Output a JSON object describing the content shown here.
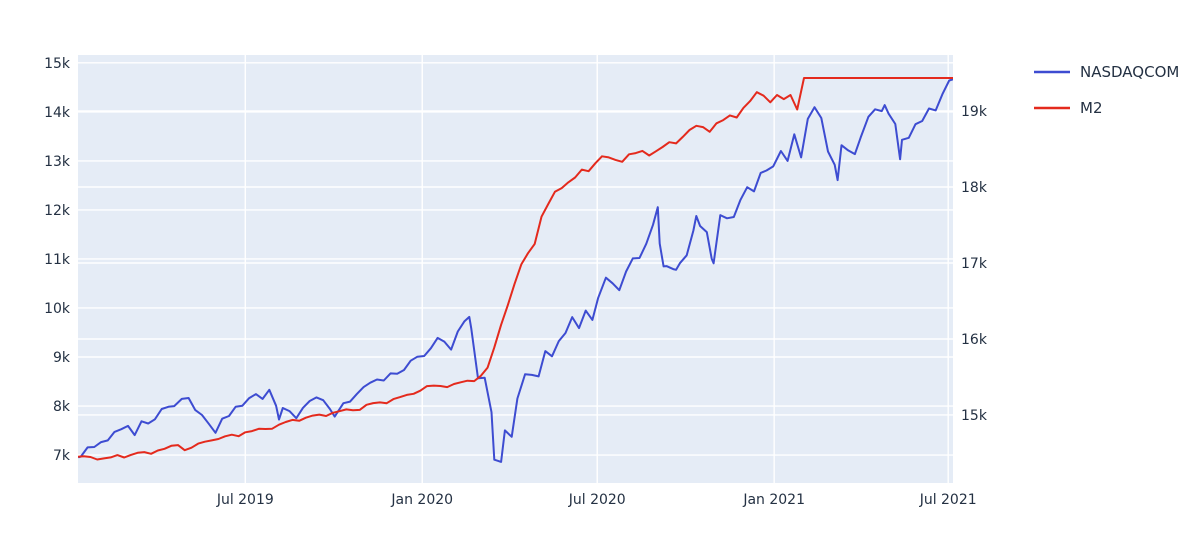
{
  "chart_data": {
    "type": "line",
    "title": "",
    "legend_position": "top-right",
    "grid": true,
    "colors": {
      "nasdaq": "#3d4cd1",
      "m2": "#e42a1d",
      "plot_bg": "#e5ecf6",
      "grid": "#ffffff",
      "text": "#243143"
    },
    "x_range": [
      "2019-01-08",
      "2021-07-06"
    ],
    "x_tick_dates": [
      "2019-07-01",
      "2020-01-01",
      "2020-07-01",
      "2021-01-01",
      "2021-07-01"
    ],
    "x_tick_labels": [
      "Jul 2019",
      "Jan 2020",
      "Jul 2020",
      "Jan 2021",
      "Jul 2021"
    ],
    "y_left": {
      "range": [
        6430,
        15160
      ],
      "ticks": [
        7000,
        8000,
        9000,
        10000,
        11000,
        12000,
        13000,
        14000,
        15000
      ],
      "tick_labels": [
        "7k",
        "8k",
        "9k",
        "10k",
        "11k",
        "12k",
        "13k",
        "14k",
        "15k"
      ]
    },
    "y_right": {
      "range": [
        14105,
        19737
      ],
      "ticks": [
        15000,
        16000,
        17000,
        18000,
        19000
      ],
      "tick_labels": [
        "15k",
        "16k",
        "17k",
        "18k",
        "19k"
      ]
    },
    "series": [
      {
        "name": "NASDAQCOM",
        "axis": "left",
        "color_key": "nasdaq",
        "points": [
          [
            "2019-01-09",
            6957
          ],
          [
            "2019-01-11",
            6971
          ],
          [
            "2019-01-18",
            7157
          ],
          [
            "2019-01-25",
            7164
          ],
          [
            "2019-02-01",
            7264
          ],
          [
            "2019-02-08",
            7298
          ],
          [
            "2019-02-15",
            7472
          ],
          [
            "2019-02-22",
            7527
          ],
          [
            "2019-03-01",
            7595
          ],
          [
            "2019-03-08",
            7408
          ],
          [
            "2019-03-15",
            7689
          ],
          [
            "2019-03-22",
            7643
          ],
          [
            "2019-03-29",
            7729
          ],
          [
            "2019-04-05",
            7939
          ],
          [
            "2019-04-12",
            7984
          ],
          [
            "2019-04-18",
            7998
          ],
          [
            "2019-04-26",
            8146
          ],
          [
            "2019-05-03",
            8164
          ],
          [
            "2019-05-10",
            7917
          ],
          [
            "2019-05-17",
            7816
          ],
          [
            "2019-05-24",
            7637
          ],
          [
            "2019-05-31",
            7453
          ],
          [
            "2019-06-07",
            7742
          ],
          [
            "2019-06-14",
            7797
          ],
          [
            "2019-06-21",
            7987
          ],
          [
            "2019-06-28",
            8006
          ],
          [
            "2019-07-05",
            8162
          ],
          [
            "2019-07-12",
            8244
          ],
          [
            "2019-07-19",
            8146
          ],
          [
            "2019-07-26",
            8330
          ],
          [
            "2019-08-02",
            8004
          ],
          [
            "2019-08-05",
            7726
          ],
          [
            "2019-08-09",
            7959
          ],
          [
            "2019-08-16",
            7896
          ],
          [
            "2019-08-23",
            7751
          ],
          [
            "2019-08-30",
            7963
          ],
          [
            "2019-09-06",
            8103
          ],
          [
            "2019-09-13",
            8177
          ],
          [
            "2019-09-20",
            8118
          ],
          [
            "2019-09-27",
            7940
          ],
          [
            "2019-10-02",
            7785
          ],
          [
            "2019-10-11",
            8057
          ],
          [
            "2019-10-18",
            8090
          ],
          [
            "2019-10-25",
            8243
          ],
          [
            "2019-11-01",
            8386
          ],
          [
            "2019-11-08",
            8475
          ],
          [
            "2019-11-15",
            8541
          ],
          [
            "2019-11-22",
            8520
          ],
          [
            "2019-11-29",
            8665
          ],
          [
            "2019-12-06",
            8657
          ],
          [
            "2019-12-13",
            8735
          ],
          [
            "2019-12-20",
            8925
          ],
          [
            "2019-12-27",
            9007
          ],
          [
            "2020-01-03",
            9021
          ],
          [
            "2020-01-10",
            9179
          ],
          [
            "2020-01-17",
            9389
          ],
          [
            "2020-01-24",
            9315
          ],
          [
            "2020-01-31",
            9151
          ],
          [
            "2020-02-07",
            9521
          ],
          [
            "2020-02-14",
            9731
          ],
          [
            "2020-02-19",
            9817
          ],
          [
            "2020-02-21",
            9577
          ],
          [
            "2020-02-28",
            8567
          ],
          [
            "2020-03-06",
            8576
          ],
          [
            "2020-03-13",
            7875
          ],
          [
            "2020-03-16",
            6905
          ],
          [
            "2020-03-20",
            6880
          ],
          [
            "2020-03-23",
            6861
          ],
          [
            "2020-03-27",
            7502
          ],
          [
            "2020-04-03",
            7373
          ],
          [
            "2020-04-09",
            8154
          ],
          [
            "2020-04-17",
            8650
          ],
          [
            "2020-04-24",
            8635
          ],
          [
            "2020-05-01",
            8605
          ],
          [
            "2020-05-08",
            9121
          ],
          [
            "2020-05-15",
            9015
          ],
          [
            "2020-05-22",
            9325
          ],
          [
            "2020-05-29",
            9490
          ],
          [
            "2020-06-05",
            9814
          ],
          [
            "2020-06-12",
            9589
          ],
          [
            "2020-06-19",
            9946
          ],
          [
            "2020-06-26",
            9757
          ],
          [
            "2020-07-02",
            10208
          ],
          [
            "2020-07-10",
            10617
          ],
          [
            "2020-07-17",
            10503
          ],
          [
            "2020-07-24",
            10363
          ],
          [
            "2020-07-31",
            10745
          ],
          [
            "2020-08-07",
            11011
          ],
          [
            "2020-08-14",
            11019
          ],
          [
            "2020-08-21",
            11312
          ],
          [
            "2020-08-28",
            11696
          ],
          [
            "2020-09-02",
            12056
          ],
          [
            "2020-09-04",
            11313
          ],
          [
            "2020-09-08",
            10848
          ],
          [
            "2020-09-11",
            10854
          ],
          [
            "2020-09-18",
            10793
          ],
          [
            "2020-09-21",
            10779
          ],
          [
            "2020-09-25",
            10914
          ],
          [
            "2020-10-02",
            11075
          ],
          [
            "2020-10-09",
            11580
          ],
          [
            "2020-10-12",
            11876
          ],
          [
            "2020-10-16",
            11672
          ],
          [
            "2020-10-23",
            11548
          ],
          [
            "2020-10-28",
            11005
          ],
          [
            "2020-10-30",
            10912
          ],
          [
            "2020-11-06",
            11895
          ],
          [
            "2020-11-13",
            11829
          ],
          [
            "2020-11-20",
            11855
          ],
          [
            "2020-11-27",
            12206
          ],
          [
            "2020-12-04",
            12464
          ],
          [
            "2020-12-11",
            12378
          ],
          [
            "2020-12-18",
            12756
          ],
          [
            "2020-12-24",
            12805
          ],
          [
            "2020-12-31",
            12888
          ],
          [
            "2021-01-08",
            13202
          ],
          [
            "2021-01-15",
            12999
          ],
          [
            "2021-01-22",
            13543
          ],
          [
            "2021-01-29",
            13071
          ],
          [
            "2021-02-05",
            13856
          ],
          [
            "2021-02-12",
            14095
          ],
          [
            "2021-02-19",
            13874
          ],
          [
            "2021-02-26",
            13192
          ],
          [
            "2021-03-05",
            12920
          ],
          [
            "2021-03-08",
            12609
          ],
          [
            "2021-03-12",
            13320
          ],
          [
            "2021-03-19",
            13215
          ],
          [
            "2021-03-26",
            13139
          ],
          [
            "2021-04-01",
            13480
          ],
          [
            "2021-04-09",
            13900
          ],
          [
            "2021-04-16",
            14052
          ],
          [
            "2021-04-23",
            14016
          ],
          [
            "2021-04-26",
            14138
          ],
          [
            "2021-04-30",
            13963
          ],
          [
            "2021-05-07",
            13752
          ],
          [
            "2021-05-12",
            13032
          ],
          [
            "2021-05-14",
            13430
          ],
          [
            "2021-05-21",
            13471
          ],
          [
            "2021-05-28",
            13749
          ],
          [
            "2021-06-04",
            13814
          ],
          [
            "2021-06-11",
            14069
          ],
          [
            "2021-06-18",
            14030
          ],
          [
            "2021-06-25",
            14360
          ],
          [
            "2021-07-02",
            14639
          ],
          [
            "2021-07-06",
            14664
          ]
        ]
      },
      {
        "name": "M2",
        "axis": "right",
        "color_key": "m2",
        "points": [
          [
            "2019-01-08",
            14450
          ],
          [
            "2019-01-14",
            14458
          ],
          [
            "2019-01-21",
            14447
          ],
          [
            "2019-01-28",
            14414
          ],
          [
            "2019-02-04",
            14429
          ],
          [
            "2019-02-11",
            14442
          ],
          [
            "2019-02-18",
            14472
          ],
          [
            "2019-02-25",
            14441
          ],
          [
            "2019-03-04",
            14475
          ],
          [
            "2019-03-11",
            14502
          ],
          [
            "2019-03-18",
            14512
          ],
          [
            "2019-03-25",
            14489
          ],
          [
            "2019-04-01",
            14533
          ],
          [
            "2019-04-08",
            14555
          ],
          [
            "2019-04-15",
            14594
          ],
          [
            "2019-04-22",
            14604
          ],
          [
            "2019-04-29",
            14536
          ],
          [
            "2019-05-06",
            14569
          ],
          [
            "2019-05-13",
            14623
          ],
          [
            "2019-05-20",
            14648
          ],
          [
            "2019-05-27",
            14665
          ],
          [
            "2019-06-03",
            14684
          ],
          [
            "2019-06-10",
            14720
          ],
          [
            "2019-06-17",
            14741
          ],
          [
            "2019-06-24",
            14721
          ],
          [
            "2019-07-01",
            14772
          ],
          [
            "2019-07-08",
            14788
          ],
          [
            "2019-07-15",
            14818
          ],
          [
            "2019-07-22",
            14816
          ],
          [
            "2019-07-29",
            14819
          ],
          [
            "2019-08-05",
            14872
          ],
          [
            "2019-08-12",
            14908
          ],
          [
            "2019-08-19",
            14935
          ],
          [
            "2019-08-26",
            14923
          ],
          [
            "2019-09-02",
            14964
          ],
          [
            "2019-09-09",
            14992
          ],
          [
            "2019-09-16",
            15005
          ],
          [
            "2019-09-23",
            14987
          ],
          [
            "2019-09-30",
            15029
          ],
          [
            "2019-10-07",
            15050
          ],
          [
            "2019-10-14",
            15074
          ],
          [
            "2019-10-21",
            15063
          ],
          [
            "2019-10-28",
            15067
          ],
          [
            "2019-11-04",
            15134
          ],
          [
            "2019-11-11",
            15157
          ],
          [
            "2019-11-18",
            15166
          ],
          [
            "2019-11-25",
            15155
          ],
          [
            "2019-12-02",
            15209
          ],
          [
            "2019-12-09",
            15236
          ],
          [
            "2019-12-16",
            15264
          ],
          [
            "2019-12-23",
            15279
          ],
          [
            "2019-12-30",
            15319
          ],
          [
            "2020-01-06",
            15380
          ],
          [
            "2020-01-13",
            15387
          ],
          [
            "2020-01-20",
            15381
          ],
          [
            "2020-01-27",
            15367
          ],
          [
            "2020-02-03",
            15408
          ],
          [
            "2020-02-10",
            15430
          ],
          [
            "2020-02-17",
            15451
          ],
          [
            "2020-02-24",
            15446
          ],
          [
            "2020-03-02",
            15516
          ],
          [
            "2020-03-09",
            15624
          ],
          [
            "2020-03-16",
            15889
          ],
          [
            "2020-03-23",
            16187
          ],
          [
            "2020-03-30",
            16445
          ],
          [
            "2020-04-06",
            16722
          ],
          [
            "2020-04-13",
            16981
          ],
          [
            "2020-04-20",
            17129
          ],
          [
            "2020-04-27",
            17251
          ],
          [
            "2020-05-04",
            17609
          ],
          [
            "2020-05-11",
            17775
          ],
          [
            "2020-05-18",
            17937
          ],
          [
            "2020-05-25",
            17985
          ],
          [
            "2020-06-01",
            18062
          ],
          [
            "2020-06-08",
            18125
          ],
          [
            "2020-06-15",
            18229
          ],
          [
            "2020-06-22",
            18208
          ],
          [
            "2020-06-29",
            18312
          ],
          [
            "2020-07-06",
            18404
          ],
          [
            "2020-07-13",
            18389
          ],
          [
            "2020-07-20",
            18357
          ],
          [
            "2020-07-27",
            18331
          ],
          [
            "2020-08-03",
            18430
          ],
          [
            "2020-08-10",
            18446
          ],
          [
            "2020-08-17",
            18475
          ],
          [
            "2020-08-24",
            18414
          ],
          [
            "2020-08-31",
            18470
          ],
          [
            "2020-09-07",
            18527
          ],
          [
            "2020-09-14",
            18590
          ],
          [
            "2020-09-21",
            18574
          ],
          [
            "2020-09-28",
            18659
          ],
          [
            "2020-10-05",
            18750
          ],
          [
            "2020-10-12",
            18805
          ],
          [
            "2020-10-19",
            18788
          ],
          [
            "2020-10-26",
            18726
          ],
          [
            "2020-11-02",
            18838
          ],
          [
            "2020-11-09",
            18880
          ],
          [
            "2020-11-16",
            18942
          ],
          [
            "2020-11-23",
            18914
          ],
          [
            "2020-11-30",
            19041
          ],
          [
            "2020-12-07",
            19131
          ],
          [
            "2020-12-14",
            19247
          ],
          [
            "2020-12-21",
            19201
          ],
          [
            "2020-12-28",
            19114
          ],
          [
            "2021-01-04",
            19210
          ],
          [
            "2021-01-11",
            19157
          ],
          [
            "2021-01-18",
            19211
          ],
          [
            "2021-01-25",
            19020
          ],
          [
            "2021-02-01",
            19434
          ],
          [
            "2021-03-01",
            19434
          ],
          [
            "2021-04-01",
            19434
          ],
          [
            "2021-05-03",
            19434
          ],
          [
            "2021-06-01",
            19434
          ],
          [
            "2021-07-06",
            19434
          ]
        ]
      }
    ]
  }
}
